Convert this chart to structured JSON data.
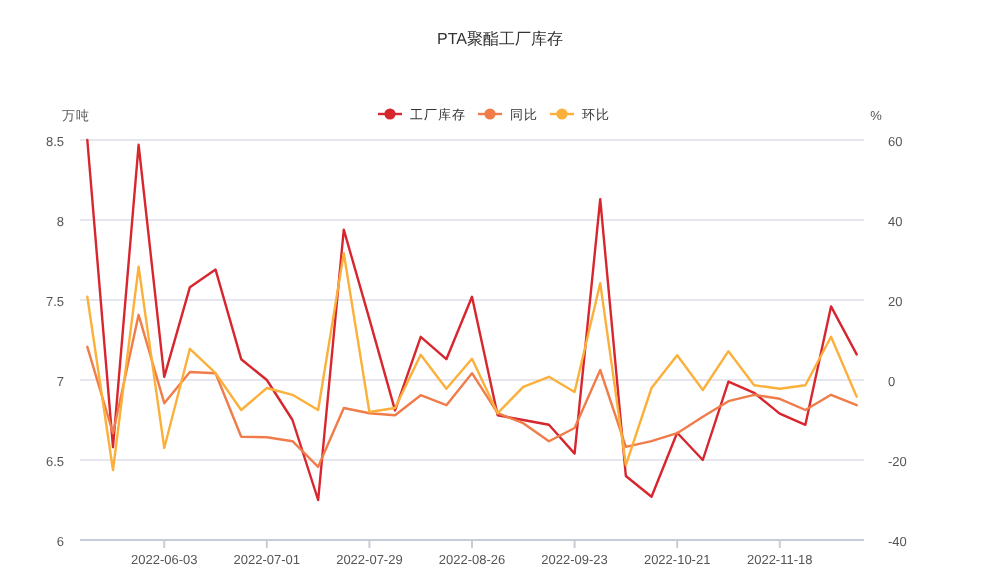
{
  "chart_data": {
    "type": "line",
    "title": "PTA聚酯工厂库存",
    "ylabel": "万吨",
    "y2label": "%",
    "x": [
      "2022-05-13",
      "2022-05-20",
      "2022-05-27",
      "2022-06-03",
      "2022-06-10",
      "2022-06-17",
      "2022-06-24",
      "2022-07-01",
      "2022-07-08",
      "2022-07-15",
      "2022-07-22",
      "2022-07-29",
      "2022-08-05",
      "2022-08-12",
      "2022-08-19",
      "2022-08-26",
      "2022-09-02",
      "2022-09-09",
      "2022-09-16",
      "2022-09-23",
      "2022-09-30",
      "2022-10-07",
      "2022-10-14",
      "2022-10-21",
      "2022-10-28",
      "2022-11-04",
      "2022-11-11",
      "2022-11-18",
      "2022-11-25",
      "2022-12-02",
      "2022-12-09"
    ],
    "series": [
      {
        "name": "工厂库存",
        "color": "#d7262e",
        "values": [
          8.5,
          6.58,
          8.47,
          7.02,
          7.58,
          7.69,
          7.13,
          7.0,
          6.75,
          6.25,
          7.94,
          7.38,
          6.81,
          7.27,
          7.13,
          7.52,
          6.78,
          6.75,
          6.72,
          6.54,
          8.13,
          6.4,
          6.27,
          6.67,
          6.5,
          6.99,
          6.92,
          6.79,
          6.72,
          7.46,
          7.16
        ]
      },
      {
        "name": "同比",
        "color": "#f07c4a",
        "axis": "y2",
        "values": [
          8.3,
          -13.3,
          16.3,
          -5.8,
          2,
          1.7,
          -14.2,
          -14.3,
          -15.3,
          -21.7,
          -7,
          -8.3,
          -8.8,
          -3.8,
          -6.3,
          1.7,
          -8.3,
          -10.8,
          -15.3,
          -12,
          2.5,
          -16.7,
          -15.3,
          -13.3,
          -9.2,
          -5.3,
          -3.7,
          -4.7,
          -7.5,
          -3.7,
          -6.3
        ]
      },
      {
        "name": "环比",
        "color": "#fbb03b",
        "axis": "y2",
        "values": [
          20.8,
          -22.5,
          28.3,
          -17,
          7.8,
          1.7,
          -7.5,
          -2,
          -3.7,
          -7.5,
          31.7,
          -8,
          -7,
          6.3,
          -2.2,
          5.3,
          -8.3,
          -1.7,
          0.8,
          -3,
          24.2,
          -21.3,
          -2,
          6.2,
          -2.5,
          7.2,
          -1.3,
          -2.2,
          -1.3,
          10.8,
          -4.2
        ]
      }
    ],
    "xlim": [
      "2022-05-11",
      "2022-12-11"
    ],
    "xticks": [
      {
        "value": "2022-06-03",
        "label": "2022-06-03"
      },
      {
        "value": "2022-07-01",
        "label": "2022-07-01"
      },
      {
        "value": "2022-07-29",
        "label": "2022-07-29"
      },
      {
        "value": "2022-08-26",
        "label": "2022-08-26"
      },
      {
        "value": "2022-09-23",
        "label": "2022-09-23"
      },
      {
        "value": "2022-10-21",
        "label": "2022-10-21"
      },
      {
        "value": "2022-11-18",
        "label": "2022-11-18"
      }
    ],
    "ylim": [
      6,
      8.5
    ],
    "yticks": [
      6,
      6.5,
      7,
      7.5,
      8,
      8.5
    ],
    "y2lim": [
      -40,
      60
    ],
    "y2ticks": [
      -40,
      -20,
      0,
      20,
      40,
      60
    ],
    "grid": "y",
    "legend": "top",
    "marker": "none",
    "line_style": "solid"
  }
}
